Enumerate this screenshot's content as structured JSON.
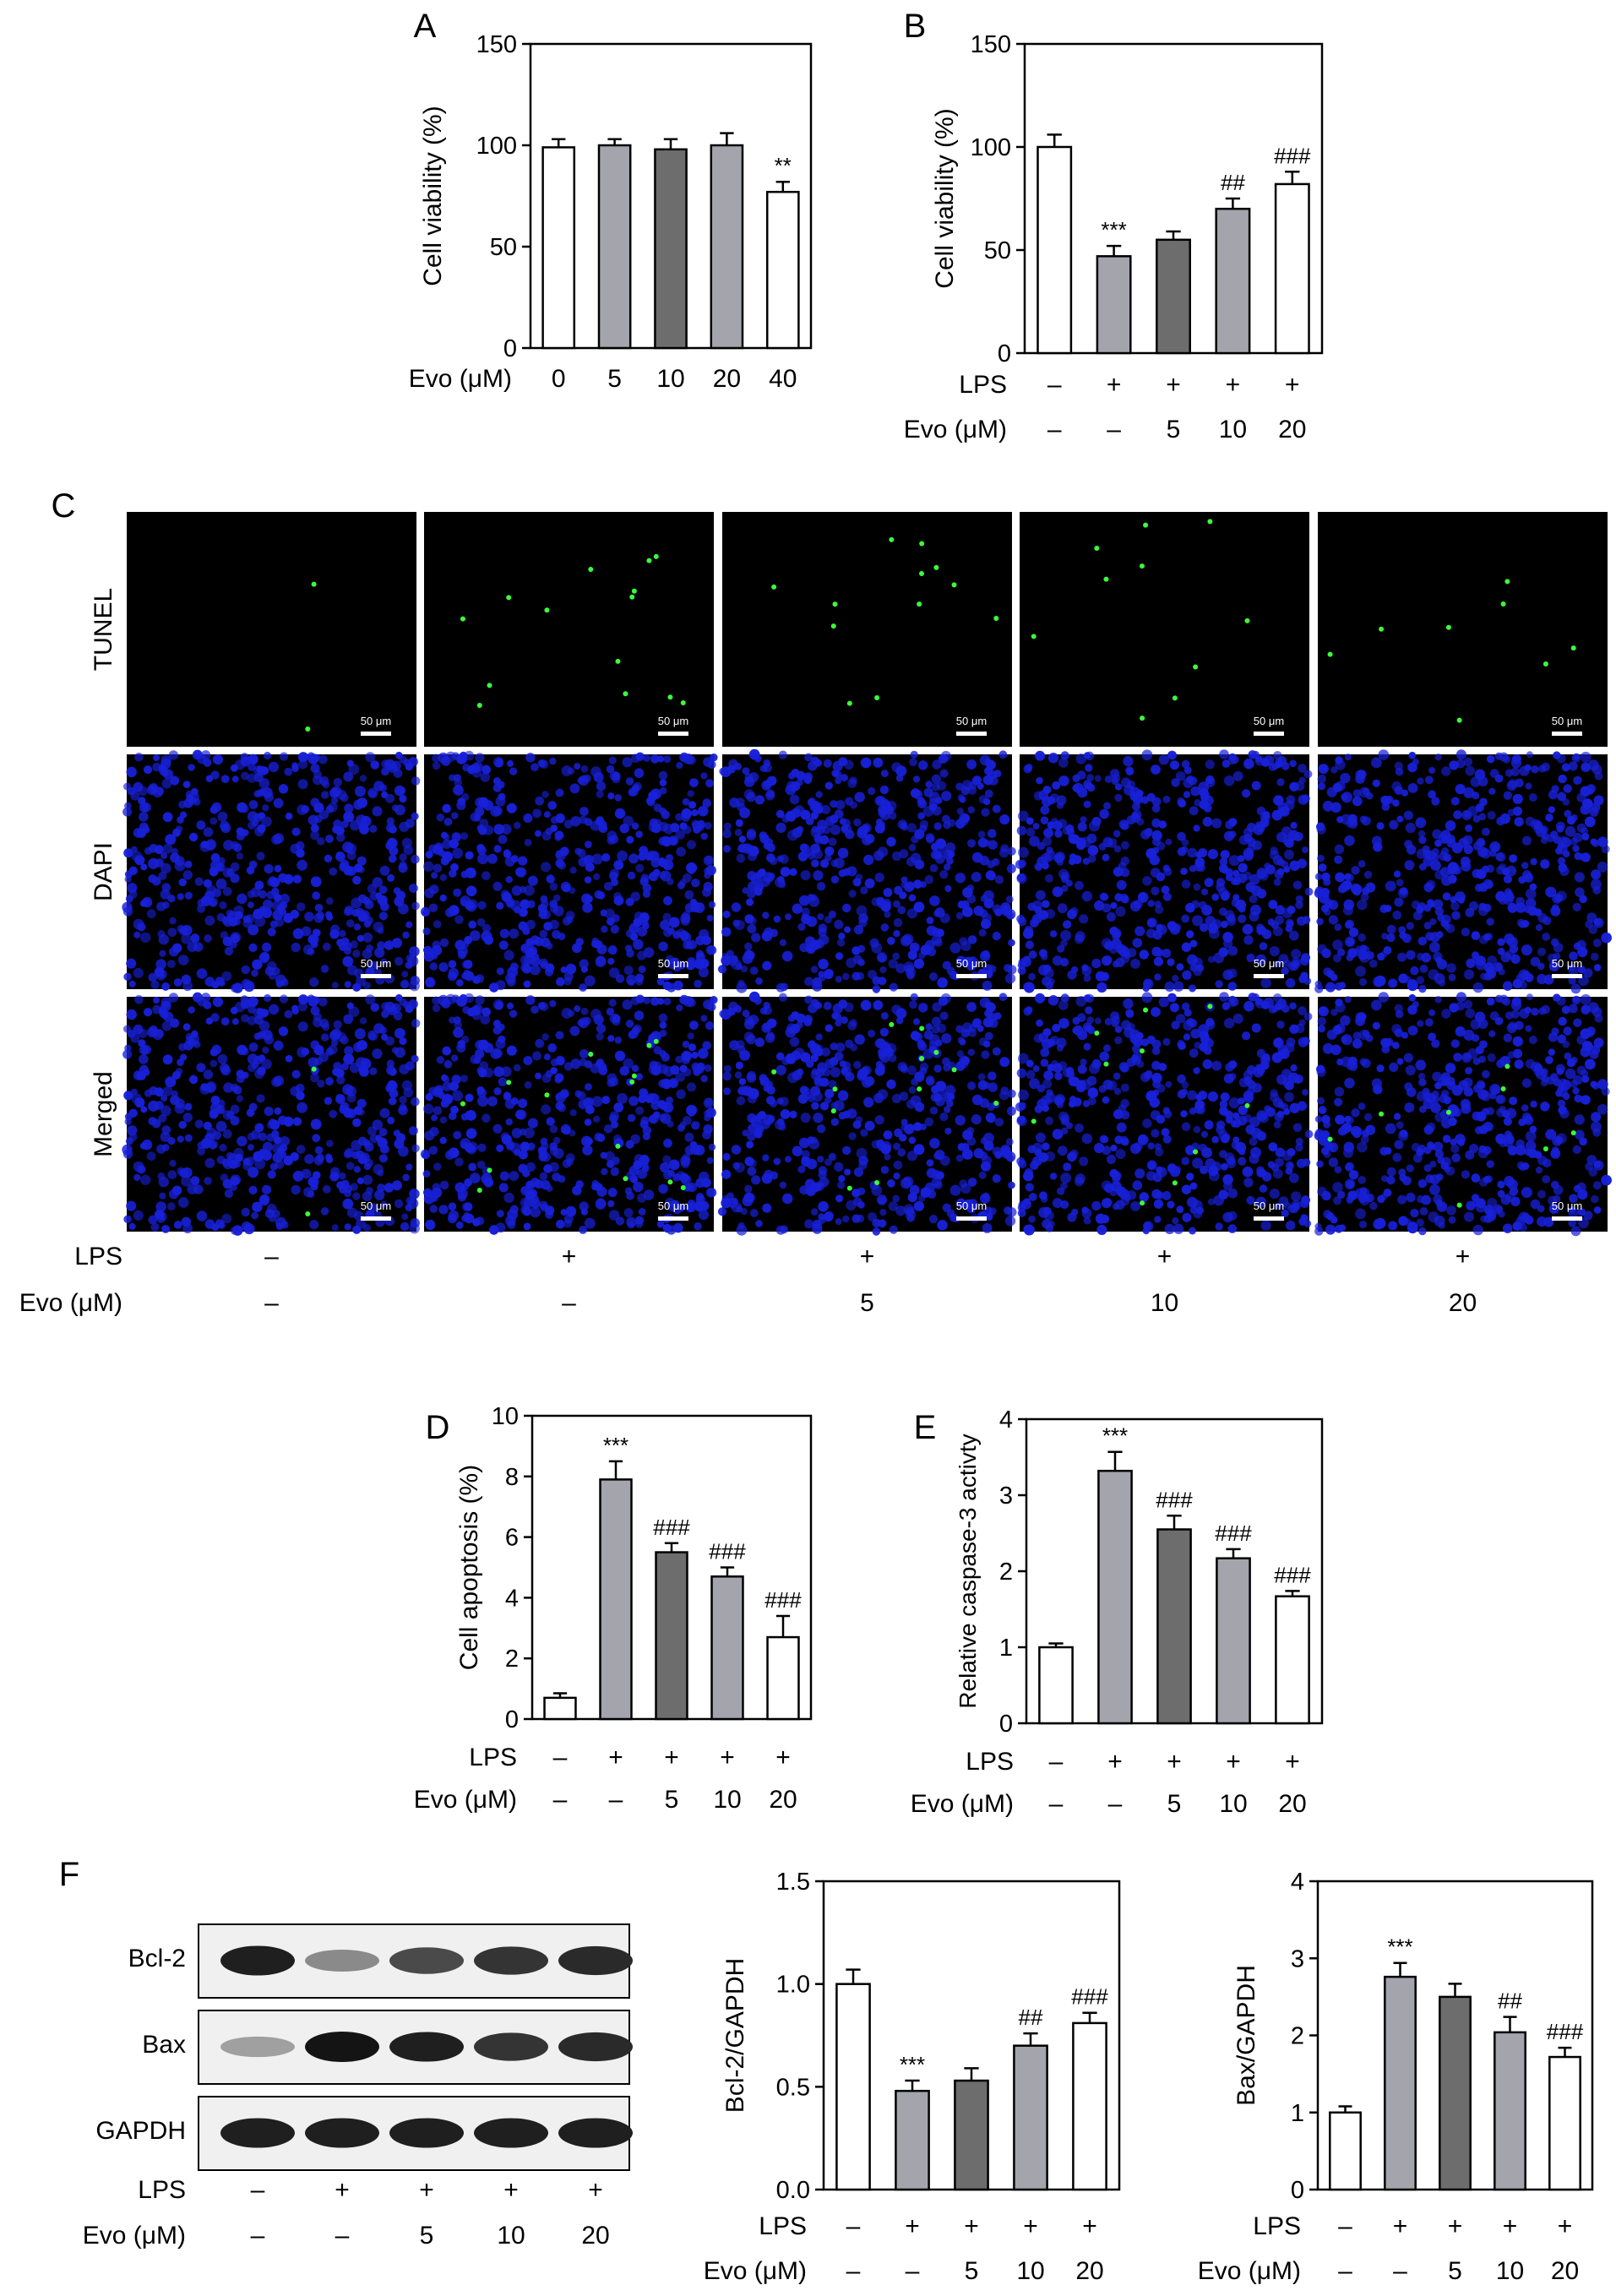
{
  "colors": {
    "white": "#ffffff",
    "light": "#a4a4ad",
    "dark": "#6d6d6d",
    "frame": "#000000",
    "micro_bg": "#000000",
    "dapi": "#1820d8",
    "tunel": "#3aff3a"
  },
  "condition_row": {
    "lps_label": "LPS",
    "evo_label": "Evo (μM)",
    "lps": [
      "–",
      "+",
      "+",
      "+",
      "+"
    ],
    "evo": [
      "–",
      "–",
      "5",
      "10",
      "20"
    ]
  },
  "panels": {
    "A": "A",
    "B": "B",
    "C": "C",
    "D": "D",
    "E": "E",
    "F": "F"
  },
  "microscopy": {
    "rows": [
      "TUNEL",
      "DAPI",
      "Merged"
    ],
    "scale_bar": "50 μm",
    "columns": 5
  },
  "western": {
    "bands": [
      "Bcl-2",
      "Bax",
      "GAPDH"
    ],
    "intensity": {
      "Bcl-2": [
        0.95,
        0.45,
        0.75,
        0.85,
        0.9
      ],
      "Bax": [
        0.35,
        1.0,
        0.95,
        0.85,
        0.9
      ],
      "GAPDH": [
        0.95,
        0.95,
        0.95,
        0.95,
        0.95
      ]
    }
  },
  "chart_data": [
    {
      "id": "A",
      "type": "bar",
      "ylabel": "Cell viability (%)",
      "ylim": [
        0,
        150
      ],
      "yticks": [
        0,
        50,
        100,
        150
      ],
      "xlabel": "Evo (μM)",
      "categories": [
        "0",
        "5",
        "10",
        "20",
        "40"
      ],
      "values": [
        99,
        100,
        98,
        100,
        77
      ],
      "errors": [
        4,
        3,
        5,
        6,
        5
      ],
      "fills": [
        "white",
        "light",
        "dark",
        "light",
        "white"
      ],
      "annotations": [
        "",
        "",
        "",
        "",
        "**"
      ]
    },
    {
      "id": "B",
      "type": "bar",
      "ylabel": "Cell viability (%)",
      "ylim": [
        0,
        150
      ],
      "yticks": [
        0,
        50,
        100,
        150
      ],
      "categories": [
        "1",
        "2",
        "3",
        "4",
        "5"
      ],
      "values": [
        100,
        47,
        55,
        70,
        82
      ],
      "errors": [
        6,
        5,
        4,
        5,
        6
      ],
      "fills": [
        "white",
        "light",
        "dark",
        "light",
        "white"
      ],
      "annotations": [
        "",
        "***",
        "",
        "##",
        "###"
      ]
    },
    {
      "id": "D",
      "type": "bar",
      "ylabel": "Cell apoptosis (%)",
      "ylim": [
        0,
        10
      ],
      "yticks": [
        0,
        2,
        4,
        6,
        8,
        10
      ],
      "categories": [
        "1",
        "2",
        "3",
        "4",
        "5"
      ],
      "values": [
        0.7,
        7.9,
        5.5,
        4.7,
        2.7
      ],
      "errors": [
        0.15,
        0.6,
        0.3,
        0.3,
        0.7
      ],
      "fills": [
        "white",
        "light",
        "dark",
        "light",
        "white"
      ],
      "annotations": [
        "",
        "***",
        "###",
        "###",
        "###"
      ]
    },
    {
      "id": "E",
      "type": "bar",
      "ylabel": "Relative caspase-3 activty",
      "ylim": [
        0,
        4
      ],
      "yticks": [
        0,
        1,
        2,
        3,
        4
      ],
      "categories": [
        "1",
        "2",
        "3",
        "4",
        "5"
      ],
      "values": [
        1.0,
        3.32,
        2.55,
        2.17,
        1.67
      ],
      "errors": [
        0.05,
        0.25,
        0.18,
        0.12,
        0.07
      ],
      "fills": [
        "white",
        "light",
        "dark",
        "light",
        "white"
      ],
      "annotations": [
        "",
        "***",
        "###",
        "###",
        "###"
      ]
    },
    {
      "id": "F1",
      "type": "bar",
      "ylabel": "Bcl-2/GAPDH",
      "ylim": [
        0,
        1.5
      ],
      "yticks": [
        "0.0",
        "0.5",
        "1.0",
        "1.5"
      ],
      "categories": [
        "1",
        "2",
        "3",
        "4",
        "5"
      ],
      "values": [
        1.0,
        0.48,
        0.53,
        0.7,
        0.81
      ],
      "errors": [
        0.07,
        0.05,
        0.06,
        0.06,
        0.05
      ],
      "fills": [
        "white",
        "light",
        "dark",
        "light",
        "white"
      ],
      "annotations": [
        "",
        "***",
        "",
        "##",
        "###"
      ]
    },
    {
      "id": "F2",
      "type": "bar",
      "ylabel": "Bax/GAPDH",
      "ylim": [
        0,
        4
      ],
      "yticks": [
        0,
        1,
        2,
        3,
        4
      ],
      "categories": [
        "1",
        "2",
        "3",
        "4",
        "5"
      ],
      "values": [
        1.0,
        2.76,
        2.5,
        2.04,
        1.72
      ],
      "errors": [
        0.08,
        0.18,
        0.17,
        0.2,
        0.12
      ],
      "fills": [
        "white",
        "light",
        "dark",
        "light",
        "white"
      ],
      "annotations": [
        "",
        "***",
        "",
        "##",
        "###"
      ]
    }
  ]
}
